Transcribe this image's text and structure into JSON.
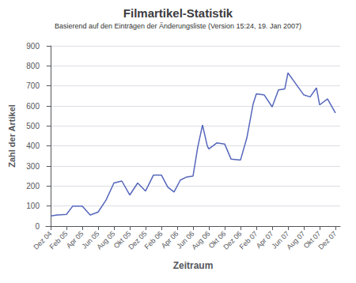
{
  "chart_data": {
    "type": "line",
    "title": "Filmartikel-Statistik",
    "subtitle": "Basierend auf den Einträgen der Änderungsliste (Version 15:24, 19. Jan 2007)",
    "x_label": "Zeitraum",
    "y_label": "Zahl der Artikel",
    "color": "#5566bb",
    "x": [
      0,
      0.4,
      1,
      1.4,
      2,
      2.5,
      3,
      3.5,
      4,
      4.5,
      5,
      5.5,
      6,
      6.5,
      7,
      7.4,
      7.8,
      8.2,
      8.6,
      9,
      9.3,
      9.6,
      9.9,
      10,
      10.5,
      11,
      11.4,
      12,
      12.4,
      12.8,
      13,
      13.5,
      14,
      14.4,
      14.8,
      15,
      15.5,
      16,
      16.4,
      16.8,
      17,
      17.5,
      18
    ],
    "values": [
      50,
      55,
      58,
      100,
      100,
      55,
      70,
      130,
      215,
      225,
      155,
      215,
      175,
      255,
      255,
      195,
      170,
      230,
      245,
      250,
      395,
      505,
      400,
      385,
      415,
      410,
      335,
      330,
      440,
      610,
      660,
      655,
      595,
      680,
      685,
      765,
      710,
      655,
      645,
      690,
      605,
      635,
      565
    ],
    "xlim": [
      -0.3,
      18.3
    ],
    "xticks": [
      {
        "value": 0,
        "label": "Dez 04"
      },
      {
        "value": 1,
        "label": "Feb 05"
      },
      {
        "value": 2,
        "label": "Apr 05"
      },
      {
        "value": 3,
        "label": "Jun 05"
      },
      {
        "value": 4,
        "label": "Aug 05"
      },
      {
        "value": 5,
        "label": "Okt 05"
      },
      {
        "value": 6,
        "label": "Dez 05"
      },
      {
        "value": 7,
        "label": "Feb 06"
      },
      {
        "value": 8,
        "label": "Apr 06"
      },
      {
        "value": 9,
        "label": "Jun 06"
      },
      {
        "value": 10,
        "label": "Aug 06"
      },
      {
        "value": 11,
        "label": "Okt 06"
      },
      {
        "value": 12,
        "label": "Dez 06"
      },
      {
        "value": 13,
        "label": "Feb 07"
      },
      {
        "value": 14,
        "label": "Apr 07"
      },
      {
        "value": 15,
        "label": "Jun 07"
      },
      {
        "value": 16,
        "label": "Aug 07"
      },
      {
        "value": 17,
        "label": "Okt 07"
      },
      {
        "value": 18,
        "label": "Dez 07"
      }
    ],
    "ylim": [
      0,
      900
    ],
    "yticks": [
      0,
      100,
      200,
      300,
      400,
      500,
      600,
      700,
      800,
      900
    ],
    "grid": "y"
  }
}
